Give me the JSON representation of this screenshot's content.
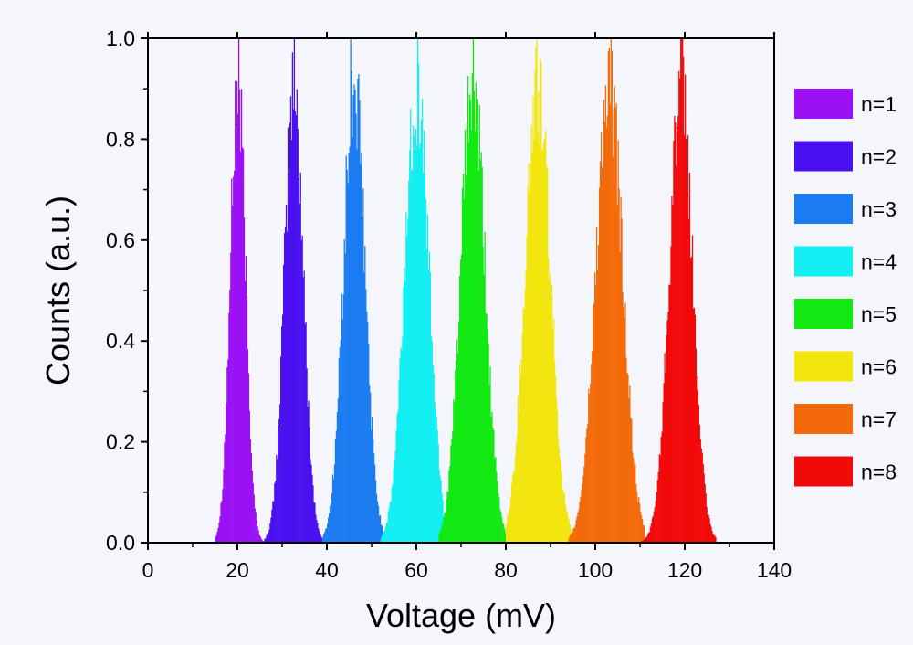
{
  "chart_data": {
    "type": "bar",
    "xlabel": "Voltage (mV)",
    "ylabel": "Counts (a.u.)",
    "xlim": [
      0,
      140
    ],
    "ylim": [
      0,
      1.0
    ],
    "x_ticks": [
      "0",
      "20",
      "40",
      "60",
      "80",
      "100",
      "120",
      "140"
    ],
    "y_ticks": [
      "0.0",
      "0.2",
      "0.4",
      "0.6",
      "0.8",
      "1.0"
    ],
    "legend_position": "right",
    "grid": false,
    "series": [
      {
        "name": "n=1",
        "color": "#9b10f5",
        "center": 20.0,
        "sigma": 1.7,
        "range": [
          15,
          26
        ],
        "peak": 1.0
      },
      {
        "name": "n=2",
        "color": "#4a11f0",
        "center": 32.5,
        "sigma": 2.1,
        "range": [
          26,
          39
        ],
        "peak": 1.0
      },
      {
        "name": "n=3",
        "color": "#1a7cf0",
        "center": 46.0,
        "sigma": 2.4,
        "range": [
          39,
          53
        ],
        "peak": 1.0
      },
      {
        "name": "n=4",
        "color": "#13eff2",
        "center": 60.0,
        "sigma": 2.7,
        "range": [
          52,
          66
        ],
        "peak": 1.0
      },
      {
        "name": "n=5",
        "color": "#12e812",
        "center": 72.5,
        "sigma": 2.7,
        "range": [
          65,
          80
        ],
        "peak": 1.0
      },
      {
        "name": "n=6",
        "color": "#f2e60e",
        "center": 87.0,
        "sigma": 2.8,
        "range": [
          80,
          95
        ],
        "peak": 1.0
      },
      {
        "name": "n=7",
        "color": "#f36a0a",
        "center": 103.0,
        "sigma": 3.0,
        "range": [
          94,
          111
        ],
        "peak": 1.0
      },
      {
        "name": "n=8",
        "color": "#f20a0a",
        "center": 119.0,
        "sigma": 2.6,
        "range": [
          110,
          127
        ],
        "peak": 1.0
      }
    ]
  }
}
